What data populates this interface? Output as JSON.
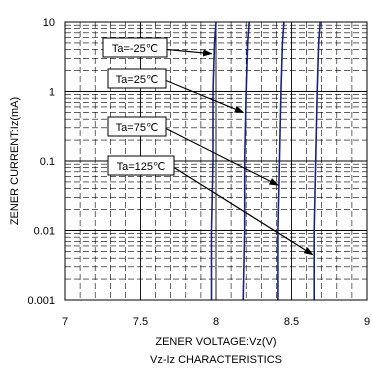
{
  "chart_data": {
    "type": "line",
    "title": "Vz-Iz CHARACTERISTICS",
    "xlabel": "ZENER VOLTAGE:Vz(V)",
    "ylabel": "ZENER CURRENT:Iz(mA)",
    "xlim": [
      7,
      9
    ],
    "ylim": [
      0.001,
      10
    ],
    "yscale": "log",
    "grid": true,
    "x_ticks": [
      "7",
      "7.5",
      "8",
      "8.5",
      "9"
    ],
    "y_ticks": [
      "0.001",
      "0.01",
      "0.1",
      "1",
      "10"
    ],
    "series": [
      {
        "name": "Ta=-25℃",
        "x": [
          7.97,
          7.97,
          7.98,
          7.98,
          7.99,
          8.0
        ],
        "y": [
          0.001,
          0.01,
          0.1,
          1,
          5,
          10
        ]
      },
      {
        "name": "Ta=25℃",
        "x": [
          8.18,
          8.19,
          8.19,
          8.2,
          8.21,
          8.22
        ],
        "y": [
          0.001,
          0.01,
          0.1,
          1,
          5,
          10
        ]
      },
      {
        "name": "Ta=75℃",
        "x": [
          8.41,
          8.41,
          8.42,
          8.43,
          8.44,
          8.45
        ],
        "y": [
          0.001,
          0.01,
          0.1,
          1,
          5,
          10
        ]
      },
      {
        "name": "Ta=125℃",
        "x": [
          8.65,
          8.65,
          8.66,
          8.67,
          8.68,
          8.69
        ],
        "y": [
          0.001,
          0.01,
          0.1,
          1,
          5,
          10
        ]
      }
    ],
    "annotations": [
      {
        "label": "Ta=-25℃",
        "arrow_to": [
          7.97,
          3.5
        ]
      },
      {
        "label": "Ta=25℃",
        "arrow_to": [
          8.18,
          0.5
        ]
      },
      {
        "label": "Ta=75℃",
        "arrow_to": [
          8.41,
          0.045
        ]
      },
      {
        "label": "Ta=125℃",
        "arrow_to": [
          8.64,
          0.0045
        ]
      }
    ]
  }
}
